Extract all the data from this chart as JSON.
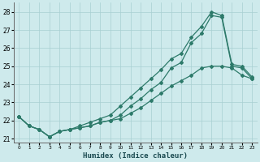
{
  "xlabel": "Humidex (Indice chaleur)",
  "x_values": [
    0,
    1,
    2,
    3,
    4,
    5,
    6,
    7,
    8,
    9,
    10,
    11,
    12,
    13,
    14,
    15,
    16,
    17,
    18,
    19,
    20,
    21,
    22,
    23
  ],
  "y_top": [
    22.2,
    21.7,
    21.5,
    21.1,
    21.4,
    21.5,
    21.7,
    21.9,
    22.1,
    22.3,
    22.8,
    23.3,
    23.8,
    24.3,
    24.8,
    25.4,
    25.7,
    26.6,
    27.2,
    28.0,
    27.8,
    25.1,
    25.0,
    24.4
  ],
  "y_mid": [
    22.2,
    21.7,
    21.5,
    21.1,
    21.4,
    21.5,
    21.6,
    21.7,
    21.9,
    22.0,
    22.3,
    22.8,
    23.2,
    23.7,
    24.1,
    24.9,
    25.2,
    26.3,
    26.8,
    27.8,
    27.7,
    25.0,
    24.9,
    24.3
  ],
  "y_bot": [
    22.2,
    21.7,
    21.5,
    21.1,
    21.4,
    21.5,
    21.6,
    21.7,
    21.9,
    22.0,
    22.1,
    22.4,
    22.7,
    23.1,
    23.5,
    23.9,
    24.2,
    24.5,
    24.9,
    25.0,
    25.0,
    24.9,
    24.5,
    24.3
  ],
  "color": "#2d7a6a",
  "bg_color": "#ceeaec",
  "grid_color": "#a8cfd2",
  "ylim": [
    20.8,
    28.5
  ],
  "xlim": [
    -0.5,
    23.5
  ],
  "yticks": [
    21,
    22,
    23,
    24,
    25,
    26,
    27,
    28
  ],
  "xticks": [
    0,
    1,
    2,
    3,
    4,
    5,
    6,
    7,
    8,
    9,
    10,
    11,
    12,
    13,
    14,
    15,
    16,
    17,
    18,
    19,
    20,
    21,
    22,
    23
  ]
}
